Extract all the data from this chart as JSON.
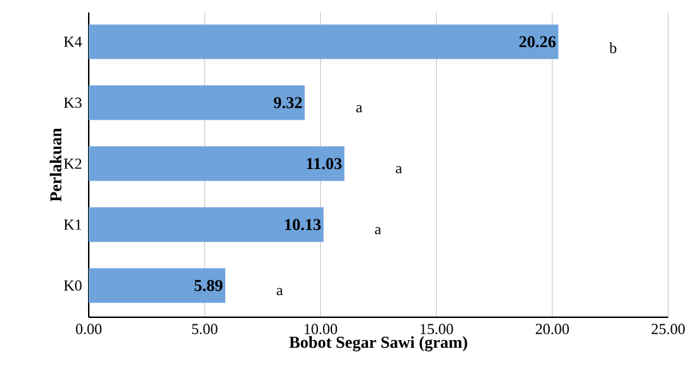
{
  "chart_data": {
    "type": "bar",
    "orientation": "horizontal",
    "categories": [
      "K4",
      "K3",
      "K2",
      "K1",
      "K0"
    ],
    "values": [
      20.26,
      9.32,
      11.03,
      10.13,
      5.89
    ],
    "color": "#6fa3dc",
    "data_labels": true,
    "xlabel": "Bobot Segar Sawi (gram)",
    "ylabel": "Perlakuan",
    "xlim": [
      0,
      25
    ],
    "xticks": [
      {
        "value": 0,
        "label": "0.00"
      },
      {
        "value": 5,
        "label": "5.00"
      },
      {
        "value": 10,
        "label": "10.00"
      },
      {
        "value": 15,
        "label": "15.00"
      },
      {
        "value": 20,
        "label": "20.00"
      },
      {
        "value": 25,
        "label": "25.00"
      }
    ],
    "grid": "x",
    "annotations": [
      "b",
      "a",
      "a",
      "a",
      "a"
    ]
  }
}
